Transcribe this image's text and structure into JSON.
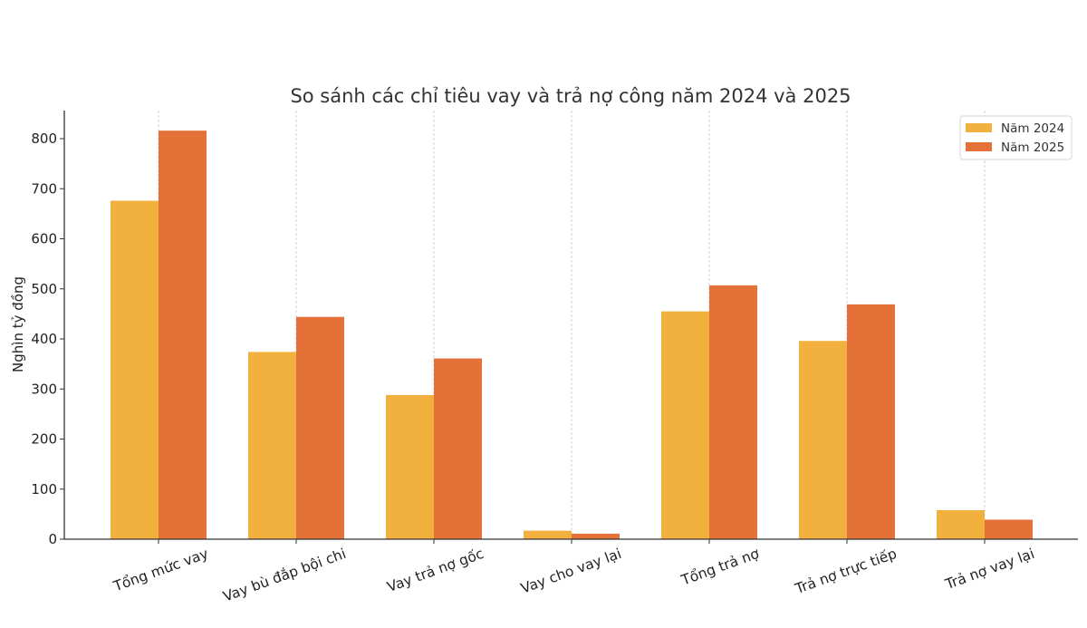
{
  "chart_data": {
    "type": "bar",
    "title": "So sánh các chỉ tiêu vay và trả nợ công năm 2024 và 2025",
    "xlabel": "",
    "ylabel": "Nghìn tỷ đồng",
    "ylim": [
      0,
      855
    ],
    "yticks": [
      0,
      100,
      200,
      300,
      400,
      500,
      600,
      700,
      800
    ],
    "grid": "vertical dashed at category centers",
    "legend_position": "upper right",
    "categories": [
      "Tổng mức vay",
      "Vay bù đắp bội chi",
      "Vay trả nợ gốc",
      "Vay cho vay lại",
      "Tổng trả nợ",
      "Trả nợ trực tiếp",
      "Trả nợ vay lại"
    ],
    "series": [
      {
        "name": "Năm 2024",
        "color": "#F2B13E",
        "values": [
          676,
          374,
          288,
          17,
          455,
          396,
          58
        ]
      },
      {
        "name": "Năm 2025",
        "color": "#E37138",
        "values": [
          816,
          444,
          361,
          11,
          507,
          469,
          39
        ]
      }
    ]
  }
}
